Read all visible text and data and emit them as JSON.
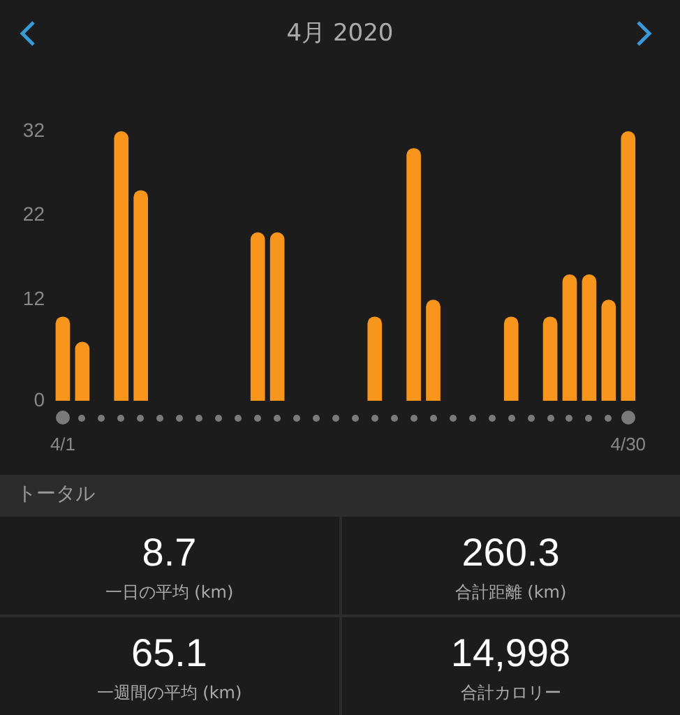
{
  "chart_data": {
    "type": "bar",
    "title": "4月 2020",
    "categories": [
      "4/1",
      null,
      null,
      null,
      null,
      null,
      null,
      null,
      null,
      null,
      null,
      null,
      null,
      null,
      null,
      null,
      null,
      null,
      null,
      null,
      null,
      null,
      null,
      null,
      null,
      null,
      null,
      null,
      null,
      "4/30"
    ],
    "values": [
      10,
      7,
      0,
      32,
      25,
      0,
      0,
      0,
      0,
      0,
      20,
      20,
      0,
      0,
      0,
      0,
      10,
      0,
      30,
      12,
      0,
      0,
      0,
      10,
      0,
      10,
      15,
      15,
      12,
      32
    ],
    "color": "#f7951d",
    "ylim": [
      0,
      32
    ],
    "yticks": [
      0,
      12,
      22,
      32
    ],
    "grid": false,
    "legend": false,
    "annotations": [
      "トータル",
      "8.7",
      "一日の平均 (km)",
      "260.3",
      "合計距離 (km)",
      "65.1",
      "一週間の平均 (km)",
      "14,998",
      "合計カロリー"
    ]
  }
}
